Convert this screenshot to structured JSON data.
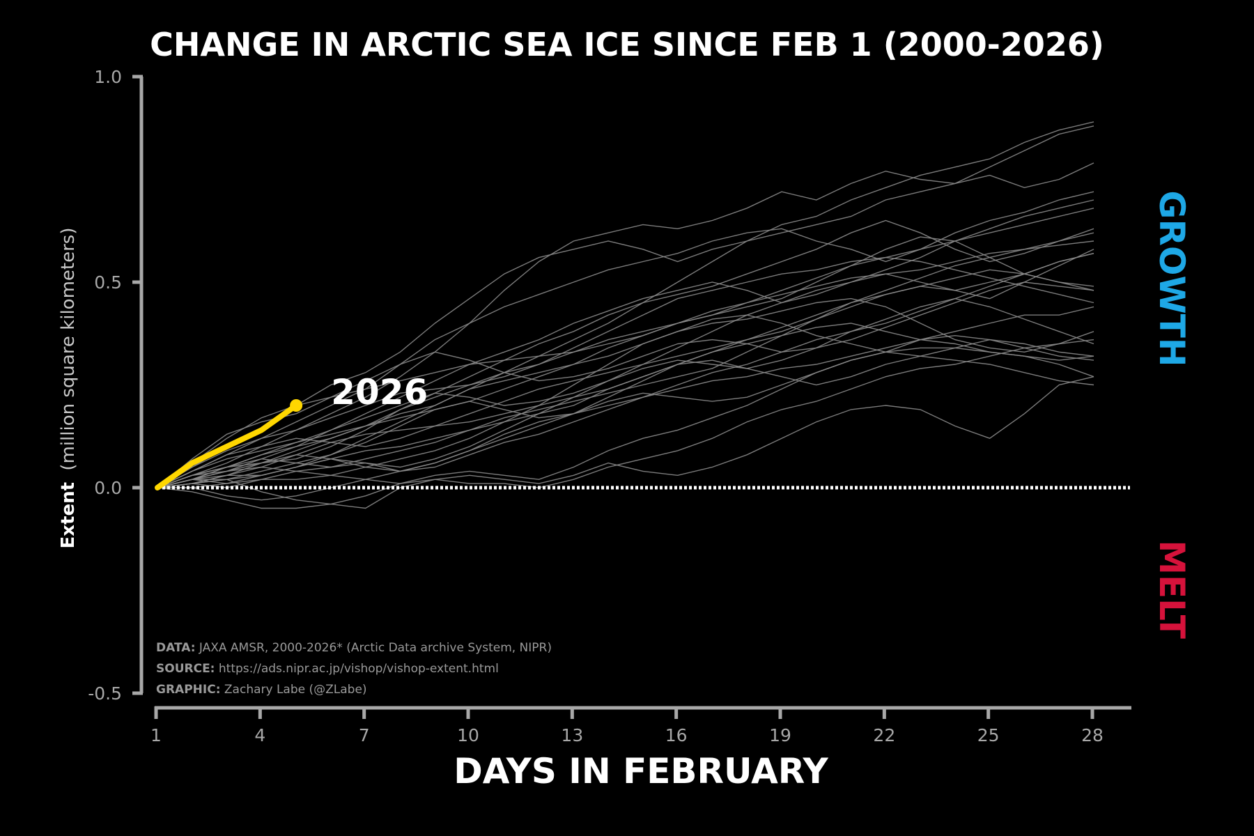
{
  "chart_data": {
    "type": "line",
    "title": "CHANGE IN ARCTIC SEA ICE SINCE FEB 1 (2000-2026)",
    "xlabel": "DAYS IN FEBRUARY",
    "ylabel_bold": "Extent",
    "ylabel_rest": "(million square kilometers)",
    "xlim": [
      1,
      29
    ],
    "ylim": [
      -0.5,
      1.0
    ],
    "xticks": [
      1,
      4,
      7,
      10,
      13,
      16,
      19,
      22,
      25,
      28
    ],
    "yticks": [
      -0.5,
      0.0,
      0.5,
      1.0
    ],
    "ytick_labels": [
      "-0.5",
      "0.0",
      "0.5",
      "1.0"
    ],
    "x": [
      1,
      2,
      3,
      4,
      5,
      6,
      7,
      8,
      9,
      10,
      11,
      12,
      13,
      14,
      15,
      16,
      17,
      18,
      19,
      20,
      21,
      22,
      23,
      24,
      25,
      26,
      27,
      28
    ],
    "zero_line": 0.0,
    "highlight": {
      "name": "2026",
      "color": "#FFD700",
      "values": [
        0.0,
        0.06,
        0.1,
        0.14,
        0.2
      ]
    },
    "background_series_color": "#8a8a8a",
    "series": [
      {
        "name": "past year 1",
        "values": [
          0.0,
          0.02,
          0.05,
          0.08,
          0.1,
          0.12,
          0.15,
          0.18,
          0.2,
          0.24,
          0.28,
          0.32,
          0.36,
          0.4,
          0.45,
          0.5,
          0.55,
          0.6,
          0.64,
          0.66,
          0.7,
          0.73,
          0.76,
          0.78,
          0.8,
          0.84,
          0.87,
          0.89
        ]
      },
      {
        "name": "past year 2",
        "values": [
          0.0,
          0.03,
          0.06,
          0.1,
          0.14,
          0.18,
          0.22,
          0.27,
          0.33,
          0.4,
          0.48,
          0.55,
          0.6,
          0.62,
          0.64,
          0.63,
          0.65,
          0.68,
          0.72,
          0.7,
          0.74,
          0.77,
          0.75,
          0.74,
          0.76,
          0.73,
          0.75,
          0.79
        ]
      },
      {
        "name": "past year 3",
        "values": [
          0.0,
          0.05,
          0.1,
          0.14,
          0.2,
          0.25,
          0.28,
          0.33,
          0.4,
          0.46,
          0.52,
          0.56,
          0.58,
          0.6,
          0.58,
          0.55,
          0.58,
          0.6,
          0.62,
          0.64,
          0.66,
          0.7,
          0.72,
          0.74,
          0.78,
          0.82,
          0.86,
          0.88
        ]
      },
      {
        "name": "past year 4",
        "values": [
          0.0,
          0.04,
          0.08,
          0.12,
          0.16,
          0.2,
          0.24,
          0.3,
          0.36,
          0.4,
          0.44,
          0.47,
          0.5,
          0.53,
          0.55,
          0.57,
          0.6,
          0.62,
          0.63,
          0.6,
          0.58,
          0.55,
          0.58,
          0.62,
          0.65,
          0.67,
          0.7,
          0.72
        ]
      },
      {
        "name": "past year 5",
        "values": [
          0.0,
          0.02,
          0.04,
          0.07,
          0.1,
          0.14,
          0.18,
          0.22,
          0.26,
          0.3,
          0.33,
          0.36,
          0.4,
          0.43,
          0.46,
          0.48,
          0.5,
          0.48,
          0.45,
          0.47,
          0.5,
          0.53,
          0.56,
          0.6,
          0.63,
          0.66,
          0.68,
          0.7
        ]
      },
      {
        "name": "past year 6",
        "values": [
          0.0,
          0.03,
          0.05,
          0.08,
          0.11,
          0.14,
          0.17,
          0.2,
          0.23,
          0.27,
          0.31,
          0.35,
          0.38,
          0.42,
          0.45,
          0.47,
          0.49,
          0.52,
          0.55,
          0.58,
          0.62,
          0.65,
          0.62,
          0.58,
          0.55,
          0.57,
          0.6,
          0.63
        ]
      },
      {
        "name": "past year 7",
        "values": [
          0.0,
          0.01,
          0.03,
          0.06,
          0.09,
          0.12,
          0.15,
          0.19,
          0.22,
          0.25,
          0.28,
          0.3,
          0.33,
          0.36,
          0.38,
          0.4,
          0.42,
          0.44,
          0.46,
          0.5,
          0.54,
          0.58,
          0.61,
          0.6,
          0.56,
          0.52,
          0.5,
          0.48
        ]
      },
      {
        "name": "past year 8",
        "values": [
          0.0,
          0.02,
          0.01,
          0.03,
          0.05,
          0.08,
          0.12,
          0.16,
          0.2,
          0.24,
          0.26,
          0.28,
          0.3,
          0.32,
          0.35,
          0.38,
          0.4,
          0.41,
          0.43,
          0.45,
          0.46,
          0.44,
          0.4,
          0.36,
          0.34,
          0.33,
          0.35,
          0.38
        ]
      },
      {
        "name": "past year 9",
        "values": [
          0.0,
          0.01,
          0.0,
          0.02,
          0.04,
          0.05,
          0.06,
          0.05,
          0.07,
          0.1,
          0.14,
          0.18,
          0.22,
          0.26,
          0.3,
          0.34,
          0.38,
          0.42,
          0.45,
          0.48,
          0.5,
          0.52,
          0.5,
          0.48,
          0.46,
          0.5,
          0.54,
          0.58
        ]
      },
      {
        "name": "past year 10",
        "values": [
          0.0,
          0.0,
          -0.02,
          -0.03,
          -0.02,
          0.0,
          0.02,
          0.04,
          0.06,
          0.09,
          0.12,
          0.15,
          0.18,
          0.22,
          0.26,
          0.3,
          0.33,
          0.35,
          0.37,
          0.39,
          0.4,
          0.38,
          0.36,
          0.35,
          0.33,
          0.32,
          0.31,
          0.32
        ]
      },
      {
        "name": "past year 11",
        "values": [
          0.0,
          -0.01,
          -0.03,
          -0.05,
          -0.05,
          -0.04,
          -0.02,
          0.01,
          0.03,
          0.04,
          0.03,
          0.02,
          0.05,
          0.09,
          0.12,
          0.14,
          0.17,
          0.2,
          0.24,
          0.28,
          0.31,
          0.33,
          0.36,
          0.38,
          0.4,
          0.42,
          0.42,
          0.44
        ]
      },
      {
        "name": "past year 12",
        "values": [
          0.0,
          0.01,
          0.02,
          -0.01,
          -0.03,
          -0.04,
          -0.05,
          0.0,
          0.02,
          0.01,
          0.01,
          0.0,
          0.02,
          0.05,
          0.07,
          0.09,
          0.12,
          0.16,
          0.19,
          0.21,
          0.24,
          0.27,
          0.29,
          0.3,
          0.32,
          0.34,
          0.35,
          0.36
        ]
      },
      {
        "name": "past year 13",
        "values": [
          0.0,
          0.0,
          0.01,
          0.02,
          0.02,
          0.03,
          0.02,
          0.01,
          0.02,
          0.03,
          0.02,
          0.01,
          0.03,
          0.06,
          0.04,
          0.03,
          0.05,
          0.08,
          0.12,
          0.16,
          0.19,
          0.2,
          0.19,
          0.15,
          0.12,
          0.18,
          0.25,
          0.27
        ]
      },
      {
        "name": "past year 14",
        "values": [
          0.0,
          0.02,
          0.03,
          0.03,
          0.05,
          0.07,
          0.09,
          0.1,
          0.12,
          0.14,
          0.16,
          0.18,
          0.2,
          0.24,
          0.27,
          0.3,
          0.31,
          0.29,
          0.27,
          0.25,
          0.27,
          0.3,
          0.32,
          0.31,
          0.3,
          0.28,
          0.26,
          0.25
        ]
      },
      {
        "name": "past year 15",
        "values": [
          0.0,
          0.04,
          0.08,
          0.1,
          0.12,
          0.11,
          0.1,
          0.12,
          0.15,
          0.18,
          0.21,
          0.24,
          0.26,
          0.28,
          0.3,
          0.32,
          0.34,
          0.36,
          0.38,
          0.41,
          0.44,
          0.47,
          0.49,
          0.48,
          0.5,
          0.52,
          0.55,
          0.57
        ]
      },
      {
        "name": "past year 16",
        "values": [
          0.0,
          0.06,
          0.12,
          0.17,
          0.2,
          0.22,
          0.24,
          0.26,
          0.28,
          0.3,
          0.31,
          0.32,
          0.33,
          0.35,
          0.37,
          0.4,
          0.42,
          0.45,
          0.48,
          0.51,
          0.54,
          0.56,
          0.58,
          0.6,
          0.62,
          0.64,
          0.66,
          0.68
        ]
      },
      {
        "name": "past year 17",
        "values": [
          0.0,
          0.07,
          0.13,
          0.16,
          0.18,
          0.22,
          0.26,
          0.3,
          0.33,
          0.31,
          0.28,
          0.26,
          0.27,
          0.29,
          0.32,
          0.35,
          0.36,
          0.35,
          0.33,
          0.34,
          0.36,
          0.39,
          0.42,
          0.45,
          0.48,
          0.5,
          0.49,
          0.48
        ]
      },
      {
        "name": "past year 18",
        "values": [
          0.0,
          0.03,
          0.05,
          0.06,
          0.07,
          0.1,
          0.14,
          0.19,
          0.23,
          0.22,
          0.2,
          0.21,
          0.23,
          0.26,
          0.29,
          0.31,
          0.3,
          0.29,
          0.31,
          0.34,
          0.38,
          0.41,
          0.44,
          0.46,
          0.44,
          0.41,
          0.38,
          0.35
        ]
      },
      {
        "name": "past year 19",
        "values": [
          0.0,
          0.02,
          0.04,
          0.05,
          0.04,
          0.03,
          0.05,
          0.07,
          0.09,
          0.12,
          0.16,
          0.2,
          0.25,
          0.3,
          0.35,
          0.38,
          0.41,
          0.42,
          0.4,
          0.37,
          0.35,
          0.33,
          0.32,
          0.34,
          0.36,
          0.35,
          0.33,
          0.32
        ]
      },
      {
        "name": "past year 20",
        "values": [
          0.0,
          0.01,
          0.02,
          0.03,
          0.05,
          0.07,
          0.06,
          0.04,
          0.05,
          0.08,
          0.11,
          0.13,
          0.16,
          0.19,
          0.22,
          0.25,
          0.28,
          0.3,
          0.33,
          0.36,
          0.38,
          0.4,
          0.43,
          0.46,
          0.49,
          0.52,
          0.55,
          0.57
        ]
      },
      {
        "name": "past year 21",
        "values": [
          0.0,
          0.03,
          0.04,
          0.06,
          0.08,
          0.07,
          0.05,
          0.04,
          0.06,
          0.09,
          0.13,
          0.16,
          0.18,
          0.21,
          0.23,
          0.22,
          0.21,
          0.22,
          0.25,
          0.28,
          0.31,
          0.33,
          0.34,
          0.34,
          0.33,
          0.32,
          0.3,
          0.27
        ]
      },
      {
        "name": "past year 22",
        "values": [
          0.0,
          0.05,
          0.09,
          0.12,
          0.14,
          0.17,
          0.2,
          0.23,
          0.24,
          0.25,
          0.27,
          0.3,
          0.34,
          0.38,
          0.42,
          0.46,
          0.48,
          0.5,
          0.52,
          0.53,
          0.55,
          0.56,
          0.55,
          0.53,
          0.51,
          0.49,
          0.47,
          0.45
        ]
      },
      {
        "name": "past year 23",
        "values": [
          0.0,
          0.02,
          0.02,
          0.04,
          0.06,
          0.08,
          0.11,
          0.15,
          0.19,
          0.21,
          0.19,
          0.17,
          0.18,
          0.2,
          0.22,
          0.24,
          0.26,
          0.27,
          0.29,
          0.3,
          0.32,
          0.34,
          0.36,
          0.37,
          0.36,
          0.34,
          0.32,
          0.31
        ]
      },
      {
        "name": "past year 24",
        "values": [
          0.0,
          0.04,
          0.07,
          0.09,
          0.11,
          0.13,
          0.15,
          0.17,
          0.19,
          0.21,
          0.24,
          0.27,
          0.3,
          0.34,
          0.37,
          0.4,
          0.43,
          0.45,
          0.47,
          0.49,
          0.51,
          0.52,
          0.53,
          0.55,
          0.57,
          0.58,
          0.59,
          0.6
        ]
      },
      {
        "name": "past year 25",
        "values": [
          0.0,
          0.02,
          0.05,
          0.07,
          0.06,
          0.05,
          0.07,
          0.09,
          0.11,
          0.14,
          0.17,
          0.19,
          0.21,
          0.23,
          0.25,
          0.27,
          0.29,
          0.33,
          0.37,
          0.41,
          0.45,
          0.48,
          0.51,
          0.54,
          0.56,
          0.58,
          0.6,
          0.62
        ]
      },
      {
        "name": "past year 26",
        "values": [
          0.0,
          0.01,
          0.03,
          0.05,
          0.08,
          0.11,
          0.13,
          0.14,
          0.15,
          0.16,
          0.18,
          0.2,
          0.22,
          0.24,
          0.27,
          0.3,
          0.33,
          0.36,
          0.39,
          0.42,
          0.45,
          0.47,
          0.49,
          0.51,
          0.53,
          0.52,
          0.5,
          0.49
        ]
      }
    ],
    "side_labels": {
      "growth": {
        "text": "GROWTH",
        "color": "#1EA8E6"
      },
      "melt": {
        "text": "MELT",
        "color": "#D6123B"
      }
    }
  },
  "credits": {
    "data_key": "DATA:",
    "data_value": " JAXA AMSR, 2000-2026* (Arctic Data archive System, NIPR)",
    "source_key": "SOURCE:",
    "source_value": " https://ads.nipr.ac.jp/vishop/vishop-extent.html",
    "graphic_key": "GRAPHIC:",
    "graphic_value": " Zachary Labe (@ZLabe)"
  }
}
